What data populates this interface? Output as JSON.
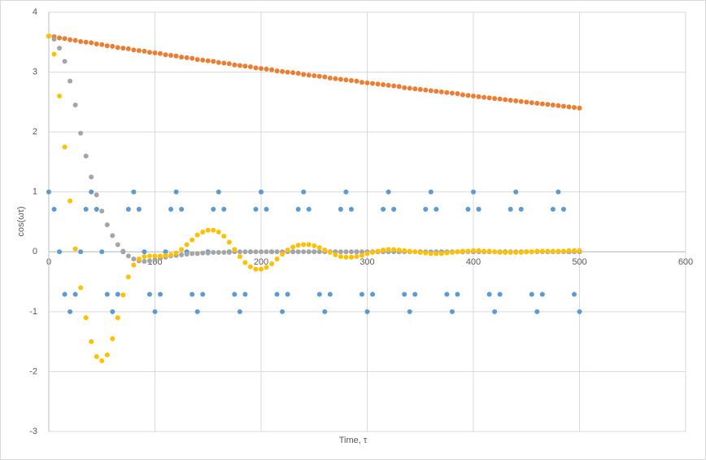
{
  "chart_data": {
    "type": "scatter",
    "xlabel": "Time, τ",
    "ylabel": "cos(ωτ)",
    "xlim": [
      0,
      600
    ],
    "xticks": [
      0,
      100,
      200,
      300,
      400,
      500,
      600
    ],
    "ylim": [
      -3,
      4
    ],
    "yticks": [
      -3,
      -2,
      -1,
      0,
      1,
      2,
      3,
      4
    ],
    "grid": true,
    "x": [
      0,
      5,
      10,
      15,
      20,
      25,
      30,
      35,
      40,
      45,
      50,
      55,
      60,
      65,
      70,
      75,
      80,
      85,
      90,
      95,
      100,
      105,
      110,
      115,
      120,
      125,
      130,
      135,
      140,
      145,
      150,
      155,
      160,
      165,
      170,
      175,
      180,
      185,
      190,
      195,
      200,
      205,
      210,
      215,
      220,
      225,
      230,
      235,
      240,
      245,
      250,
      255,
      260,
      265,
      270,
      275,
      280,
      285,
      290,
      295,
      300,
      305,
      310,
      315,
      320,
      325,
      330,
      335,
      340,
      345,
      350,
      355,
      360,
      365,
      370,
      375,
      380,
      385,
      390,
      395,
      400,
      405,
      410,
      415,
      420,
      425,
      430,
      435,
      440,
      445,
      450,
      455,
      460,
      465,
      470,
      475,
      480,
      485,
      490,
      495,
      500
    ],
    "series": [
      {
        "color": "#5b9bd5",
        "values": [
          1,
          0.71,
          0,
          -0.71,
          -1,
          -0.71,
          0,
          0.71,
          1,
          0.71,
          0,
          -0.71,
          -1,
          -0.71,
          0,
          0.71,
          1,
          0.71,
          0,
          -0.71,
          -1,
          -0.71,
          0,
          0.71,
          1,
          0.71,
          0,
          -0.71,
          -1,
          -0.71,
          0,
          0.71,
          1,
          0.71,
          0,
          -0.71,
          -1,
          -0.71,
          0,
          0.71,
          1,
          0.71,
          0,
          -0.71,
          -1,
          -0.71,
          0,
          0.71,
          1,
          0.71,
          0,
          -0.71,
          -1,
          -0.71,
          0,
          0.71,
          1,
          0.71,
          0,
          -0.71,
          -1,
          -0.71,
          0,
          0.71,
          1,
          0.71,
          0,
          -0.71,
          -1,
          -0.71,
          0,
          0.71,
          1,
          0.71,
          0,
          -0.71,
          -1,
          -0.71,
          0,
          0.71,
          1,
          0.71,
          0,
          -0.71,
          -1,
          -0.71,
          0,
          0.71,
          1,
          0.71,
          0,
          -0.71,
          -1,
          -0.71,
          0,
          0.71,
          1,
          0.71,
          0,
          -0.71,
          -1
        ]
      },
      {
        "color": "#ed7d31",
        "values": [
          3.6,
          3.59,
          3.57,
          3.56,
          3.54,
          3.53,
          3.51,
          3.5,
          3.49,
          3.47,
          3.46,
          3.44,
          3.43,
          3.41,
          3.4,
          3.39,
          3.37,
          3.36,
          3.35,
          3.33,
          3.32,
          3.31,
          3.29,
          3.28,
          3.27,
          3.25,
          3.24,
          3.23,
          3.21,
          3.2,
          3.19,
          3.18,
          3.16,
          3.15,
          3.14,
          3.12,
          3.11,
          3.1,
          3.09,
          3.07,
          3.06,
          3.05,
          3.04,
          3.02,
          3.01,
          3.0,
          2.99,
          2.98,
          2.96,
          2.95,
          2.94,
          2.93,
          2.92,
          2.9,
          2.89,
          2.88,
          2.87,
          2.86,
          2.85,
          2.83,
          2.82,
          2.81,
          2.8,
          2.79,
          2.78,
          2.77,
          2.76,
          2.74,
          2.73,
          2.72,
          2.71,
          2.7,
          2.69,
          2.68,
          2.67,
          2.66,
          2.65,
          2.64,
          2.62,
          2.61,
          2.6,
          2.59,
          2.58,
          2.57,
          2.56,
          2.55,
          2.54,
          2.53,
          2.52,
          2.51,
          2.5,
          2.49,
          2.48,
          2.47,
          2.46,
          2.45,
          2.44,
          2.43,
          2.42,
          2.41,
          2.4
        ]
      },
      {
        "color": "#a5a5a5",
        "values": [
          3.6,
          3.55,
          3.4,
          3.18,
          2.85,
          2.45,
          1.98,
          1.6,
          1.25,
          0.95,
          0.68,
          0.45,
          0.27,
          0.12,
          0.01,
          -0.07,
          -0.12,
          -0.15,
          -0.16,
          -0.15,
          -0.13,
          -0.11,
          -0.09,
          -0.07,
          -0.06,
          -0.05,
          -0.04,
          -0.03,
          -0.03,
          -0.02,
          -0.02,
          -0.01,
          -0.01,
          -0.01,
          -0.01,
          0,
          0,
          0,
          0,
          0,
          0,
          0,
          0,
          0,
          0,
          0,
          0,
          0,
          0,
          0,
          0,
          0,
          0,
          0,
          0,
          0,
          0,
          0,
          0,
          0,
          0,
          0,
          0,
          0,
          0,
          0,
          0,
          0,
          0,
          0,
          0,
          0,
          0,
          0,
          0,
          0,
          0,
          0,
          0,
          0,
          0,
          0,
          0,
          0,
          0,
          0,
          0,
          0,
          0,
          0,
          0,
          0,
          0,
          0,
          0,
          0,
          0,
          0,
          0,
          0,
          0
        ]
      },
      {
        "color": "#ffc000",
        "values": [
          3.6,
          3.3,
          2.6,
          1.75,
          0.85,
          0.05,
          -0.6,
          -1.1,
          -1.5,
          -1.75,
          -1.82,
          -1.72,
          -1.45,
          -1.1,
          -0.72,
          -0.42,
          -0.22,
          -0.12,
          -0.08,
          -0.07,
          -0.07,
          -0.07,
          -0.06,
          -0.05,
          -0.02,
          0.04,
          0.12,
          0.2,
          0.28,
          0.33,
          0.36,
          0.36,
          0.33,
          0.26,
          0.16,
          0.04,
          -0.08,
          -0.18,
          -0.25,
          -0.29,
          -0.29,
          -0.26,
          -0.2,
          -0.12,
          -0.04,
          0.03,
          0.08,
          0.11,
          0.12,
          0.12,
          0.1,
          0.07,
          0.03,
          -0.01,
          -0.05,
          -0.08,
          -0.09,
          -0.09,
          -0.08,
          -0.06,
          -0.03,
          -0.01,
          0.01,
          0.03,
          0.04,
          0.04,
          0.03,
          0.02,
          0.01,
          0.0,
          -0.01,
          -0.02,
          -0.03,
          -0.03,
          -0.03,
          -0.02,
          -0.01,
          0.0,
          0.01,
          0.01,
          0.02,
          0.02,
          0.01,
          0.01,
          0.0,
          -0.01,
          -0.01,
          -0.01,
          -0.01,
          -0.01,
          0.0,
          0.0,
          0.01,
          0.01,
          0.01,
          0.01,
          0.01,
          0.01,
          0.02,
          0.02,
          0.02
        ]
      }
    ]
  }
}
